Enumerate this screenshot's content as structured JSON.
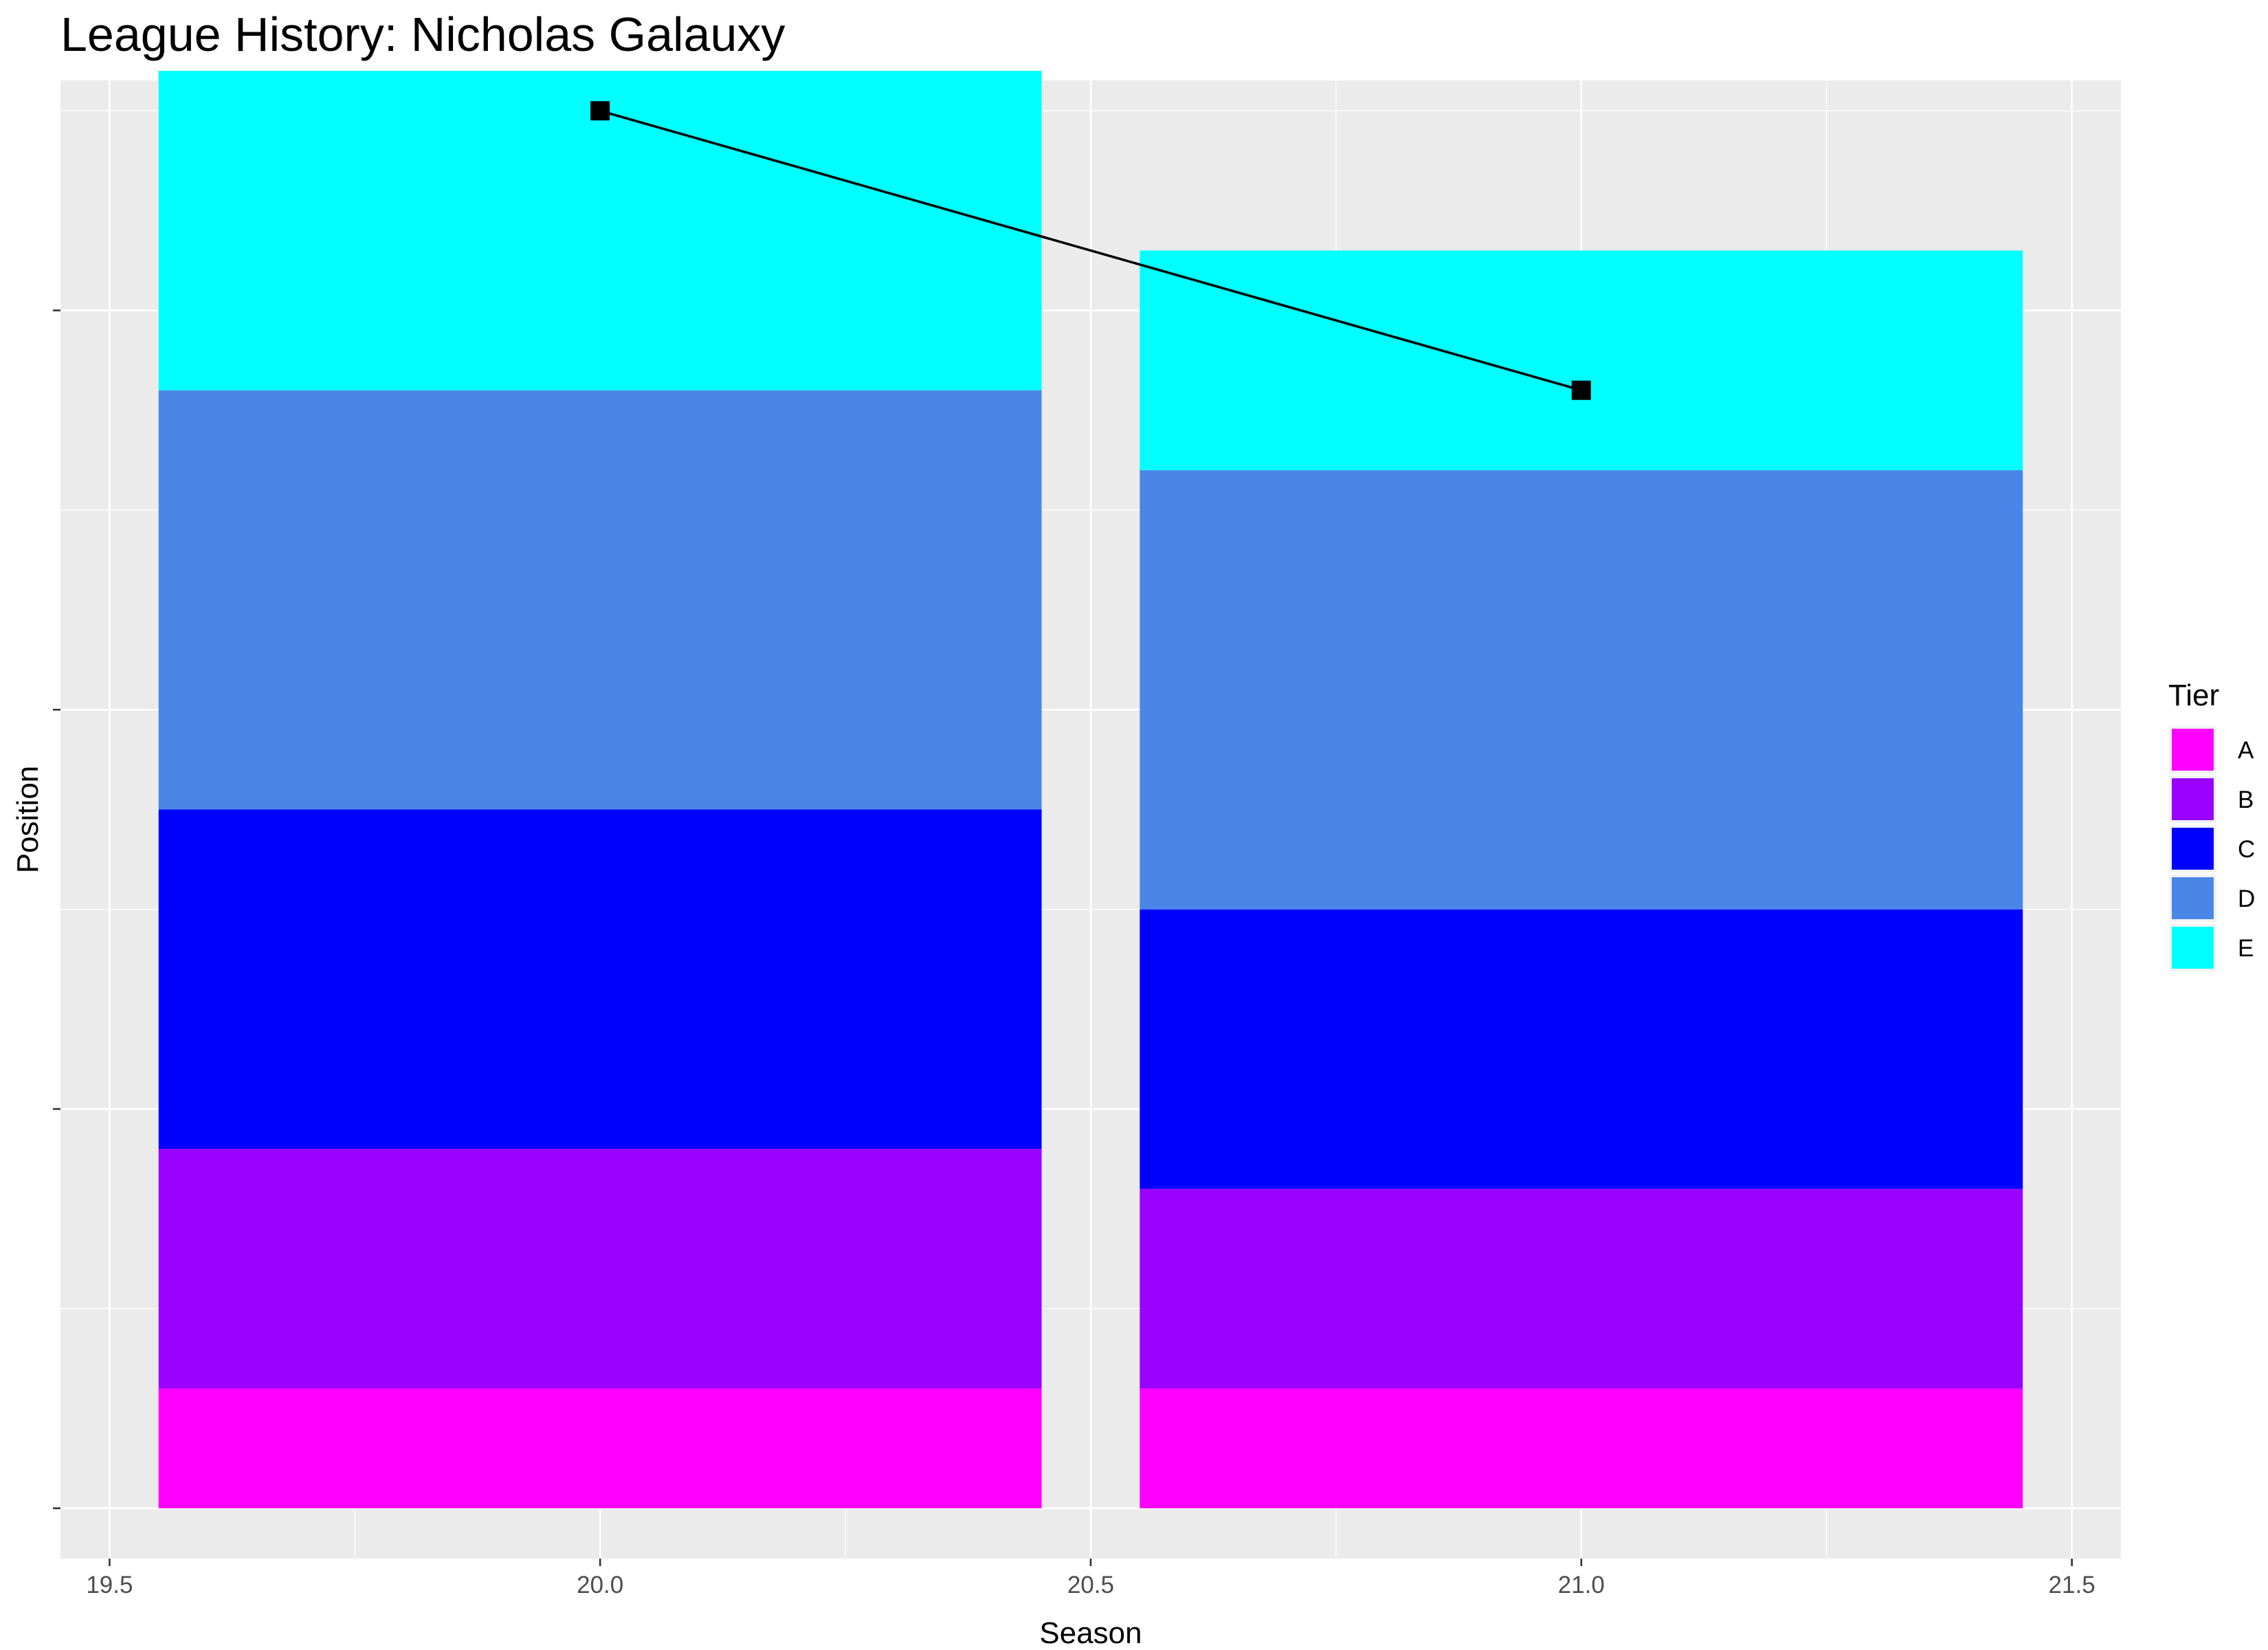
{
  "chart_data": {
    "type": "bar",
    "title": "League History: Nicholas Galauxy",
    "xlabel": "Season",
    "ylabel": "Position",
    "xlim": [
      19.45,
      21.55
    ],
    "ylim": [
      38.76,
      1.74
    ],
    "x_ticks": [
      "19.5",
      "20.0",
      "20.5",
      "21.0",
      "21.5"
    ],
    "x_tick_values": [
      19.5,
      20.0,
      20.5,
      21.0,
      21.5
    ],
    "y_tick_values": [
      3,
      13,
      23,
      33
    ],
    "y_tick_labels_shown": false,
    "grid": true,
    "legend": {
      "title": "Tier",
      "position": "right",
      "entries": [
        {
          "label": "A",
          "color": "#FF00FF"
        },
        {
          "label": "B",
          "color": "#9900FF"
        },
        {
          "label": "C",
          "color": "#0000FF"
        },
        {
          "label": "D",
          "color": "#4A86E8"
        },
        {
          "label": "E",
          "color": "#00FFFF"
        }
      ]
    },
    "bar_width": 0.9,
    "stacks": [
      {
        "season": 20,
        "tiers": [
          {
            "tier": "A",
            "from": 3,
            "to": 6,
            "color": "#FF00FF"
          },
          {
            "tier": "B",
            "from": 6,
            "to": 12,
            "color": "#9900FF"
          },
          {
            "tier": "C",
            "from": 12,
            "to": 20.5,
            "color": "#0000FF"
          },
          {
            "tier": "D",
            "from": 20.5,
            "to": 31,
            "color": "#4A86E8"
          },
          {
            "tier": "E",
            "from": 31,
            "to": 39,
            "color": "#00FFFF"
          }
        ]
      },
      {
        "season": 21,
        "tiers": [
          {
            "tier": "A",
            "from": 3,
            "to": 6,
            "color": "#FF00FF"
          },
          {
            "tier": "B",
            "from": 6,
            "to": 11,
            "color": "#9900FF"
          },
          {
            "tier": "C",
            "from": 11,
            "to": 18,
            "color": "#0000FF"
          },
          {
            "tier": "D",
            "from": 18,
            "to": 29,
            "color": "#4A86E8"
          },
          {
            "tier": "E",
            "from": 29,
            "to": 34.5,
            "color": "#00FFFF"
          }
        ]
      }
    ],
    "line": {
      "name": "Nicholas Galauxy",
      "color": "#000000",
      "marker": "square",
      "points": [
        {
          "x": 20,
          "y": 38
        },
        {
          "x": 21,
          "y": 31
        }
      ]
    },
    "colors": {
      "panel_background": "#EBEBEB",
      "grid_major": "#FFFFFF",
      "tick_text": "#4D4D4D"
    }
  }
}
